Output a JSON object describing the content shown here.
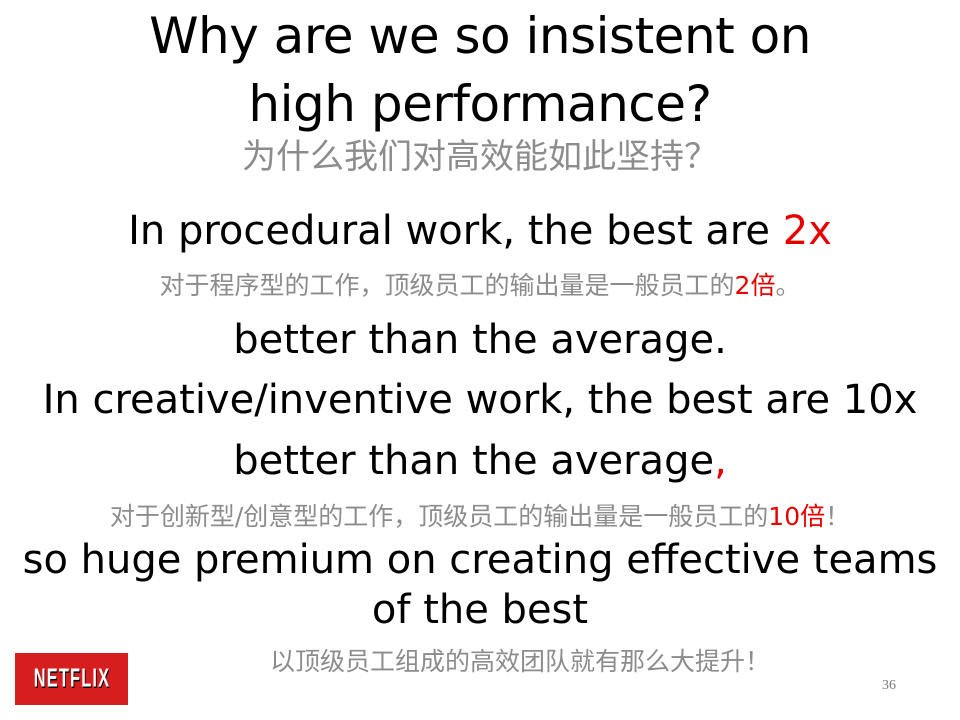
{
  "slide": {
    "title_line1": "Why are we so insistent on",
    "title_line2": "high performance?",
    "title_zh": "为什么我们对高效能如此坚持？",
    "procedural_en_pre": "In procedural work, the best are ",
    "procedural_en_highlight": "2x",
    "procedural_zh_pre": "对于程序型的工作，顶级员工的输出量是一般员工的",
    "procedural_zh_highlight": "2倍",
    "procedural_zh_post": "。",
    "better_avg_1": "better than the average.",
    "creative_en": "In creative/inventive work, the best are 10x",
    "better_avg_2_pre": "better than the average",
    "better_avg_2_comma": ",",
    "creative_zh_pre": "对于创新型/创意型的工作，顶级员工的输出量是一般员工的",
    "creative_zh_highlight": "10倍",
    "creative_zh_post": "！",
    "premium_line1": "so huge premium on creating effective teams",
    "premium_line2": "of the best",
    "premium_zh": "以顶级员工组成的高效团队就有那么大提升！",
    "logo_text": "NETFLIX",
    "page_number": "36"
  },
  "colors": {
    "highlight": "#e60000",
    "chinese_text": "#8c8c8c",
    "logo_bg": "#d71e1e"
  }
}
